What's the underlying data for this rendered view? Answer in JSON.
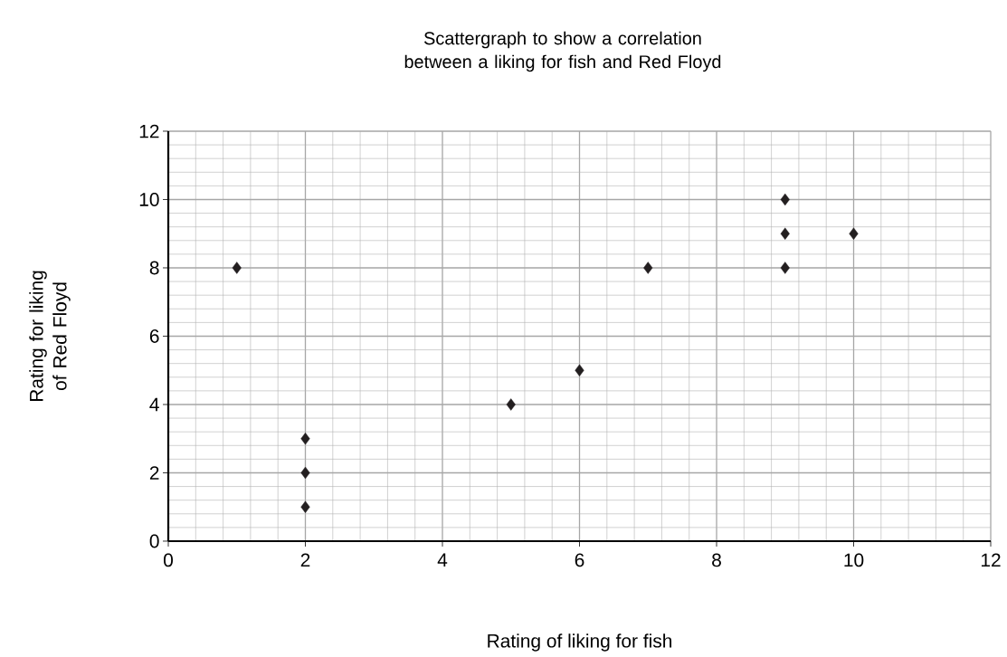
{
  "chart_data": {
    "type": "scatter",
    "title": "Scattergraph to show a correlation between a liking for fish and Red Floyd",
    "xlabel": "Rating of liking for fish",
    "ylabel": "Rating for liking of Red Floyd",
    "x": [
      1,
      2,
      2,
      2,
      5,
      6,
      7,
      9,
      9,
      9,
      10
    ],
    "values": [
      8,
      3,
      2,
      1,
      4,
      5,
      8,
      10,
      9,
      8,
      9
    ],
    "color": "#231f20",
    "marker": "diamond",
    "grid": true,
    "xlim": [
      0,
      12
    ],
    "ylim": [
      0,
      12
    ],
    "xticks": [
      0,
      2,
      4,
      6,
      8,
      10,
      12
    ],
    "yticks": [
      0,
      2,
      4,
      6,
      8,
      10,
      12
    ]
  }
}
